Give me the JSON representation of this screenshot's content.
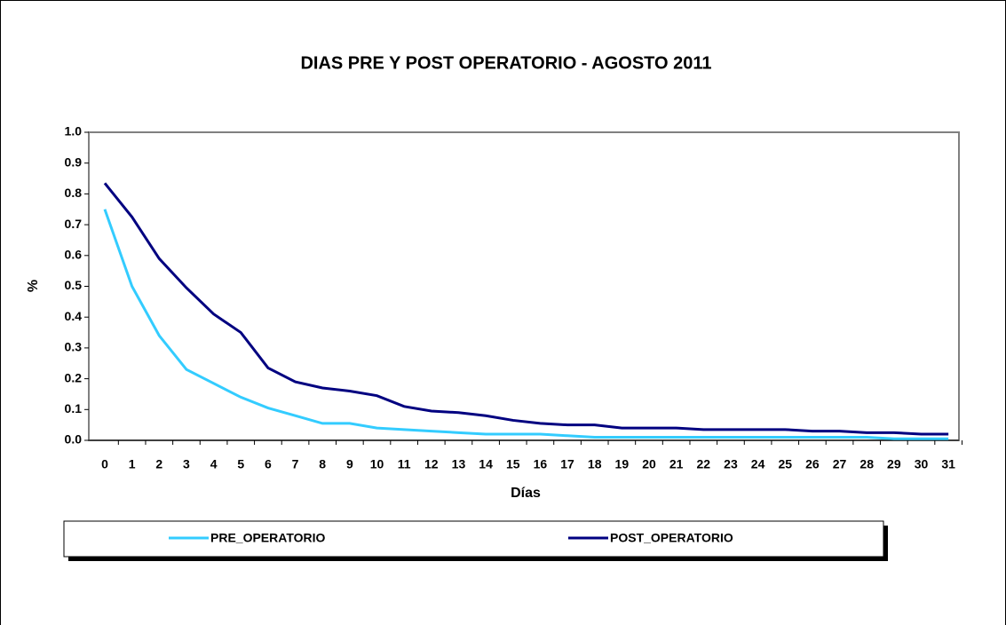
{
  "chart_data": {
    "type": "line",
    "title": "DIAS PRE Y POST OPERATORIO  -  AGOSTO  2011",
    "x_label": "Días",
    "y_label": "%",
    "categories": [
      "0",
      "1",
      "2",
      "3",
      "4",
      "5",
      "6",
      "7",
      "8",
      "9",
      "10",
      "11",
      "12",
      "13",
      "14",
      "15",
      "16",
      "17",
      "18",
      "19",
      "20",
      "21",
      "22",
      "23",
      "24",
      "25",
      "26",
      "27",
      "28",
      "29",
      "30",
      "31"
    ],
    "series": [
      {
        "name": "PRE_OPERATORIO",
        "color": "#33ccff",
        "values": [
          0.75,
          0.5,
          0.34,
          0.23,
          0.185,
          0.14,
          0.105,
          0.08,
          0.055,
          0.055,
          0.04,
          0.035,
          0.03,
          0.025,
          0.02,
          0.02,
          0.02,
          0.015,
          0.01,
          0.01,
          0.01,
          0.01,
          0.01,
          0.01,
          0.01,
          0.01,
          0.01,
          0.01,
          0.01,
          0.005,
          0.005,
          0.005
        ]
      },
      {
        "name": "POST_OPERATORIO",
        "color": "#000080",
        "values": [
          0.835,
          0.725,
          0.59,
          0.495,
          0.41,
          0.35,
          0.235,
          0.19,
          0.17,
          0.16,
          0.145,
          0.11,
          0.095,
          0.09,
          0.08,
          0.065,
          0.055,
          0.05,
          0.05,
          0.04,
          0.04,
          0.04,
          0.035,
          0.035,
          0.035,
          0.035,
          0.03,
          0.03,
          0.025,
          0.025,
          0.02,
          0.02
        ]
      }
    ],
    "ylim": [
      0,
      1
    ],
    "yticks": [
      {
        "value": 0,
        "label": "0.0"
      },
      0.1,
      0.2,
      0.3,
      0.4,
      0.5,
      0.6,
      0.7,
      0.8,
      0.9,
      {
        "value": 1,
        "label": "1.0"
      }
    ],
    "grid": false,
    "legend": "bottom"
  }
}
